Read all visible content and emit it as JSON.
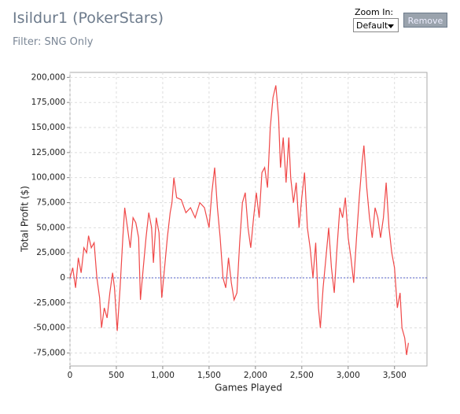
{
  "header": {
    "title": "Isildur1 (PokerStars)",
    "filter": "Filter: SNG Only"
  },
  "controls": {
    "zoom_label": "Zoom In:",
    "zoom_value": "Default",
    "button": "Remove"
  },
  "chart_data": {
    "type": "line",
    "x_label": "Games Played",
    "y_label": "Total Profit ($)",
    "color": "#f04848",
    "grid": true,
    "xlim": [
      0,
      3850
    ],
    "ylim": [
      -88000,
      205000
    ],
    "xticks": [
      0,
      500,
      {
        "value": 1000,
        "label": "1,000"
      },
      {
        "value": 1500,
        "label": "1,500"
      },
      {
        "value": 2000,
        "label": "2,000"
      },
      {
        "value": 2500,
        "label": "2,500"
      },
      {
        "value": 3000,
        "label": "3,000"
      },
      {
        "value": 3500,
        "label": "3,500"
      }
    ],
    "yticks": [
      {
        "value": -75000,
        "label": "-75,000"
      },
      {
        "value": -50000,
        "label": "-50,000"
      },
      {
        "value": -25000,
        "label": "-25,000"
      },
      0,
      {
        "value": 25000,
        "label": "25,000"
      },
      {
        "value": 50000,
        "label": "50,000"
      },
      {
        "value": 75000,
        "label": "75,000"
      },
      {
        "value": 100000,
        "label": "100,000"
      },
      {
        "value": 125000,
        "label": "125,000"
      },
      {
        "value": 150000,
        "label": "150,000"
      },
      {
        "value": 175000,
        "label": "175,000"
      },
      {
        "value": 200000,
        "label": "200,000"
      }
    ],
    "x": [
      0,
      30,
      60,
      90,
      120,
      150,
      180,
      200,
      230,
      260,
      290,
      320,
      340,
      370,
      400,
      430,
      460,
      480,
      510,
      540,
      570,
      590,
      620,
      650,
      680,
      710,
      740,
      760,
      790,
      820,
      850,
      880,
      900,
      930,
      960,
      990,
      1020,
      1050,
      1080,
      1100,
      1120,
      1150,
      1200,
      1250,
      1300,
      1350,
      1400,
      1450,
      1500,
      1530,
      1560,
      1590,
      1620,
      1650,
      1680,
      1710,
      1740,
      1770,
      1800,
      1830,
      1860,
      1890,
      1920,
      1950,
      1980,
      2010,
      2040,
      2070,
      2100,
      2130,
      2160,
      2190,
      2220,
      2250,
      2270,
      2300,
      2330,
      2360,
      2380,
      2410,
      2440,
      2470,
      2500,
      2530,
      2560,
      2590,
      2620,
      2650,
      2680,
      2700,
      2730,
      2760,
      2790,
      2820,
      2850,
      2880,
      2910,
      2940,
      2970,
      3000,
      3030,
      3060,
      3090,
      3120,
      3150,
      3170,
      3200,
      3230,
      3260,
      3290,
      3320,
      3350,
      3380,
      3410,
      3440,
      3470,
      3500,
      3530,
      3560,
      3580,
      3610,
      3630,
      3650
    ],
    "y": [
      0,
      10000,
      -10000,
      20000,
      5000,
      30000,
      25000,
      42000,
      30000,
      35000,
      0,
      -20000,
      -50000,
      -30000,
      -40000,
      -15000,
      5000,
      -10000,
      -53000,
      -10000,
      40000,
      70000,
      50000,
      30000,
      60000,
      55000,
      40000,
      -22000,
      10000,
      40000,
      65000,
      50000,
      15000,
      60000,
      45000,
      -20000,
      10000,
      40000,
      65000,
      75000,
      100000,
      80000,
      78000,
      65000,
      70000,
      60000,
      75000,
      70000,
      50000,
      85000,
      110000,
      70000,
      40000,
      0,
      -10000,
      20000,
      -5000,
      -22000,
      -15000,
      35000,
      75000,
      85000,
      50000,
      30000,
      60000,
      85000,
      60000,
      105000,
      110000,
      90000,
      150000,
      180000,
      192000,
      160000,
      110000,
      140000,
      95000,
      140000,
      100000,
      75000,
      95000,
      50000,
      80000,
      105000,
      50000,
      30000,
      0,
      35000,
      -30000,
      -50000,
      -10000,
      20000,
      50000,
      10000,
      -15000,
      30000,
      70000,
      60000,
      80000,
      40000,
      20000,
      -5000,
      40000,
      80000,
      115000,
      132000,
      90000,
      60000,
      40000,
      70000,
      60000,
      40000,
      60000,
      95000,
      50000,
      25000,
      10000,
      -30000,
      -15000,
      -50000,
      -60000,
      -77000,
      -65000
    ]
  }
}
